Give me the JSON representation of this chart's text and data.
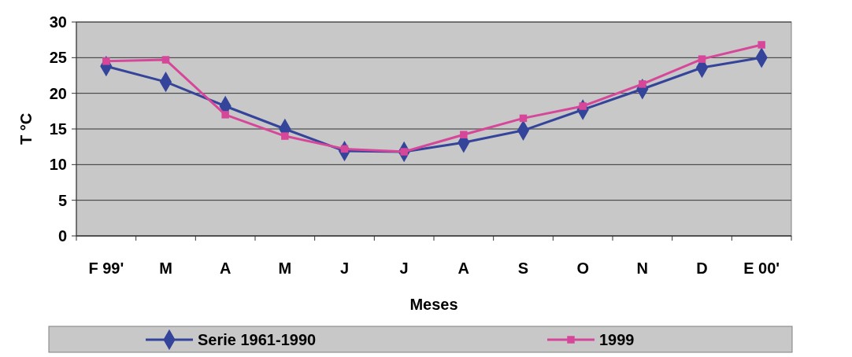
{
  "chart_data": {
    "type": "line",
    "xlabel": "Meses",
    "ylabel": "T °C",
    "categories": [
      "F 99'",
      "M",
      "A",
      "M",
      "J",
      "J",
      "A",
      "S",
      "O",
      "N",
      "D",
      "E 00'"
    ],
    "series": [
      {
        "name": "Serie 1961-1990",
        "color": "#34449a",
        "marker": "diamond",
        "values": [
          23.8,
          21.6,
          18.2,
          15,
          11.9,
          11.8,
          13.1,
          14.8,
          17.7,
          20.6,
          23.6,
          25
        ]
      },
      {
        "name": "1999",
        "color": "#d6479a",
        "marker": "square",
        "values": [
          24.5,
          24.7,
          17,
          14,
          12.2,
          11.8,
          14.2,
          16.5,
          18.2,
          21.3,
          24.8,
          26.8
        ]
      }
    ],
    "ylim": [
      0,
      30
    ],
    "yticks": [
      0,
      5,
      10,
      15,
      20,
      25,
      30
    ],
    "grid": "y",
    "legend": "bottom"
  }
}
